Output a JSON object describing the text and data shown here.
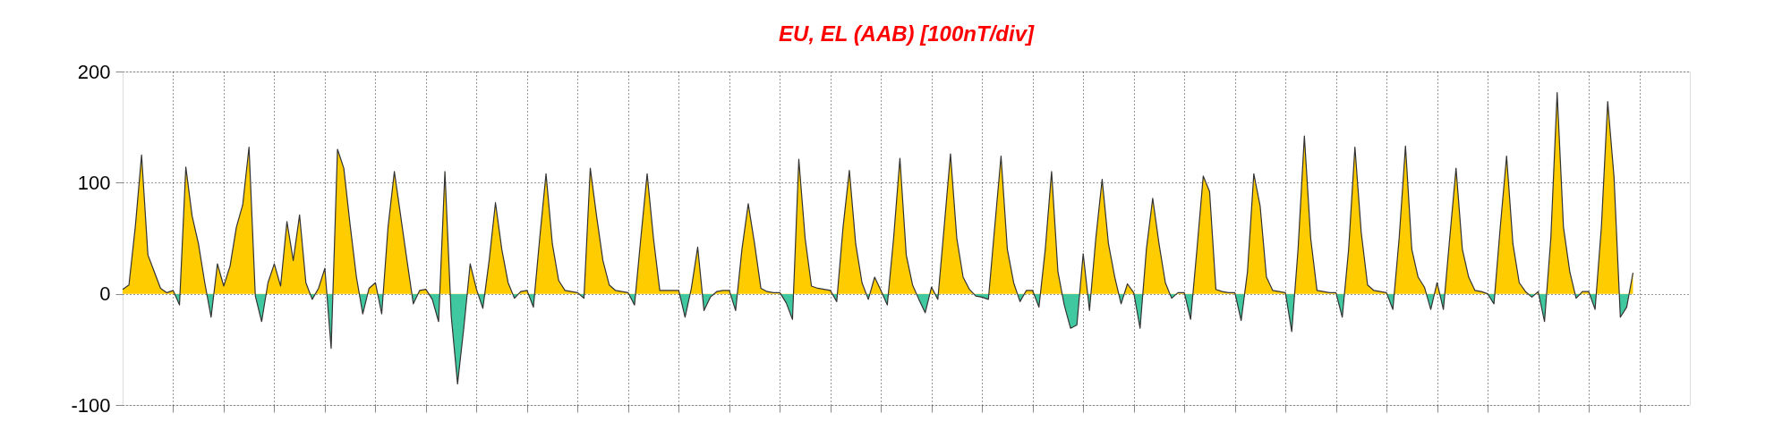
{
  "chart_data": {
    "type": "area",
    "title": "EU, EL (AAB)  [100nT/div]",
    "categories": [
      null,
      null,
      null,
      null,
      null,
      null,
      null,
      null,
      null,
      null,
      null,
      null,
      null,
      null,
      null,
      null,
      null,
      null,
      null,
      null,
      null,
      null,
      null,
      null,
      null,
      null,
      null,
      null,
      null,
      null,
      null,
      null,
      null,
      null,
      null,
      null,
      null,
      null,
      null,
      null,
      null,
      null,
      null,
      null,
      null,
      null,
      null,
      null,
      null,
      null,
      null,
      null,
      null,
      null,
      null,
      null,
      null,
      null,
      null,
      null,
      null,
      null,
      null,
      null,
      null,
      null,
      null,
      null,
      null,
      null,
      null,
      null,
      null,
      null,
      null,
      null,
      null,
      null,
      null,
      null,
      null,
      null,
      null,
      null,
      null,
      null,
      null,
      null,
      null,
      null,
      null,
      null,
      null,
      null,
      null,
      null,
      null,
      null,
      null,
      null,
      null,
      null,
      null,
      null,
      null,
      null,
      null,
      null,
      null,
      null,
      null,
      null,
      null,
      null,
      null,
      null,
      null,
      null,
      null,
      null,
      null,
      null,
      null,
      null,
      null,
      null,
      null,
      null,
      null,
      null,
      null,
      null,
      null,
      null,
      null,
      null,
      null,
      null,
      null,
      null,
      null,
      null,
      null,
      null,
      null,
      null,
      null,
      null,
      null,
      null,
      null,
      null,
      null,
      null,
      null,
      null,
      null,
      null,
      null,
      null,
      null,
      null,
      null,
      null,
      null,
      null,
      null,
      null,
      null,
      null,
      null,
      null,
      null,
      null,
      null,
      null,
      null,
      null,
      null,
      null,
      null,
      null,
      null,
      null,
      null,
      null,
      null,
      null,
      null,
      null,
      null,
      null,
      null,
      null,
      null,
      null,
      null,
      null,
      null,
      null,
      null,
      null,
      null,
      null,
      null,
      null,
      null,
      null,
      null,
      null,
      null,
      null,
      null,
      null,
      null,
      null,
      null,
      null,
      null,
      null,
      null,
      null,
      null,
      null,
      null,
      null,
      null,
      null,
      null,
      null,
      null,
      null,
      null,
      null,
      null,
      null,
      null,
      null,
      null,
      null
    ],
    "series": [
      {
        "color": "#333333",
        "values": [
          4,
          8,
          60,
          125,
          35,
          20,
          5,
          1,
          3,
          -10,
          114,
          70,
          45,
          10,
          -21,
          27,
          7,
          25,
          60,
          80,
          132,
          -2,
          -25,
          10,
          27,
          7,
          65,
          30,
          71,
          10,
          -5,
          5,
          23,
          -49,
          130,
          113,
          62,
          15,
          -18,
          5,
          10,
          -18,
          60,
          110,
          70,
          30,
          -9,
          3,
          4,
          -5,
          -25,
          110,
          -20,
          -81,
          -30,
          27,
          4,
          -13,
          30,
          82,
          40,
          10,
          -4,
          2,
          3,
          -12,
          50,
          108,
          45,
          12,
          3,
          2,
          1,
          -4,
          113,
          70,
          30,
          8,
          3,
          2,
          1,
          -10,
          50,
          108,
          50,
          3,
          3,
          3,
          3,
          -21,
          5,
          42,
          -15,
          -3,
          2,
          3,
          3,
          -15,
          40,
          81,
          45,
          5,
          2,
          1,
          1,
          -8,
          -23,
          121,
          50,
          7,
          5,
          4,
          3,
          -7,
          60,
          111,
          45,
          10,
          -5,
          15,
          3,
          -10,
          50,
          122,
          35,
          8,
          -5,
          -17,
          6,
          -5,
          60,
          126,
          50,
          15,
          4,
          -2,
          -3,
          -5,
          60,
          124,
          40,
          10,
          -7,
          3,
          3,
          -12,
          40,
          110,
          20,
          -10,
          -31,
          -28,
          36,
          -15,
          50,
          103,
          45,
          15,
          -9,
          9,
          1,
          -31,
          40,
          86,
          45,
          10,
          -4,
          1,
          1,
          -23,
          40,
          106,
          92,
          4,
          2,
          1,
          1,
          -24,
          20,
          108,
          79,
          15,
          3,
          2,
          1,
          -34,
          40,
          142,
          50,
          3,
          2,
          1,
          1,
          -21,
          40,
          132,
          55,
          8,
          3,
          2,
          1,
          -14,
          50,
          133,
          40,
          15,
          6,
          -14,
          10,
          -14,
          50,
          113,
          40,
          15,
          3,
          2,
          0,
          -9,
          60,
          124,
          45,
          10,
          2,
          -3,
          2,
          -25,
          50,
          181,
          60,
          20,
          -4,
          2,
          2,
          -14,
          60,
          173,
          105,
          -21,
          -12,
          19
        ]
      }
    ],
    "ylim": [
      -100,
      200
    ],
    "yticks": [
      -100,
      0,
      100,
      200
    ],
    "grid": true,
    "tick_labels": "y"
  }
}
